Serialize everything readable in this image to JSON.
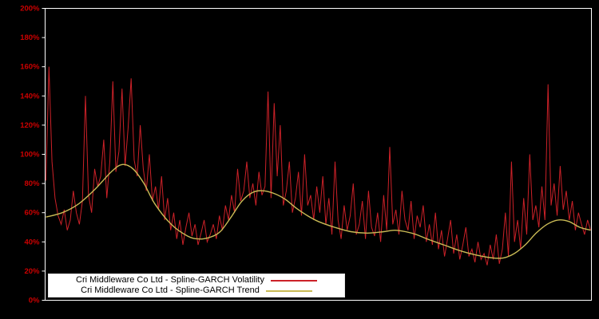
{
  "chart_data": {
    "type": "line",
    "title": "",
    "xlabel": "",
    "ylabel": "",
    "ylim": [
      0,
      200
    ],
    "ytick_step": 20,
    "ytick_suffix": "%",
    "grid": false,
    "legend_position": "bottom-left-inside",
    "background_color": "#000000",
    "axis_color": "#ffffff",
    "tick_label_color": "#cc0000",
    "series": [
      {
        "name": "Cri Middleware Co Ltd - Spline-GARCH Volatility",
        "color": "#cc2128",
        "style": "spiky-line",
        "values": [
          82,
          160,
          95,
          70,
          58,
          52,
          62,
          48,
          55,
          75,
          60,
          52,
          68,
          140,
          72,
          60,
          90,
          78,
          85,
          110,
          70,
          95,
          150,
          88,
          102,
          145,
          92,
          118,
          152,
          96,
          85,
          120,
          90,
          75,
          100,
          68,
          78,
          62,
          85,
          55,
          70,
          48,
          60,
          42,
          55,
          38,
          50,
          60,
          44,
          52,
          38,
          46,
          55,
          40,
          45,
          52,
          42,
          58,
          48,
          65,
          55,
          72,
          60,
          90,
          68,
          75,
          95,
          70,
          80,
          65,
          88,
          72,
          78,
          143,
          70,
          135,
          85,
          120,
          65,
          75,
          95,
          60,
          70,
          88,
          58,
          100,
          65,
          72,
          55,
          78,
          60,
          85,
          52,
          70,
          45,
          95,
          55,
          42,
          65,
          48,
          58,
          80,
          45,
          52,
          68,
          42,
          75,
          50,
          44,
          60,
          40,
          72,
          48,
          105,
          52,
          62,
          45,
          75,
          55,
          48,
          68,
          42,
          58,
          50,
          65,
          40,
          52,
          38,
          60,
          35,
          48,
          30,
          42,
          55,
          32,
          45,
          28,
          38,
          50,
          30,
          35,
          26,
          40,
          28,
          32,
          24,
          38,
          28,
          45,
          25,
          35,
          60,
          30,
          95,
          40,
          55,
          35,
          70,
          45,
          100,
          55,
          65,
          50,
          78,
          55,
          148,
          65,
          80,
          58,
          92,
          62,
          75,
          55,
          68,
          48,
          60,
          52,
          45,
          55,
          48
        ]
      },
      {
        "name": "Cri Middleware Co Ltd - Spline-GARCH Trend",
        "color": "#c9ba55",
        "style": "smooth-line",
        "anchors": [
          [
            0,
            57
          ],
          [
            3,
            60
          ],
          [
            6,
            66
          ],
          [
            9,
            76
          ],
          [
            12,
            88
          ],
          [
            14,
            93
          ],
          [
            16,
            90
          ],
          [
            18,
            80
          ],
          [
            20,
            66
          ],
          [
            23,
            52
          ],
          [
            26,
            44
          ],
          [
            28,
            42
          ],
          [
            30,
            43
          ],
          [
            32,
            47
          ],
          [
            34,
            57
          ],
          [
            36,
            68
          ],
          [
            38,
            74
          ],
          [
            40,
            75
          ],
          [
            42,
            73
          ],
          [
            44,
            69
          ],
          [
            46,
            63
          ],
          [
            48,
            58
          ],
          [
            50,
            54
          ],
          [
            53,
            50
          ],
          [
            56,
            47
          ],
          [
            59,
            46
          ],
          [
            62,
            47
          ],
          [
            64,
            48
          ],
          [
            66,
            47
          ],
          [
            68,
            45
          ],
          [
            70,
            42
          ],
          [
            73,
            38
          ],
          [
            76,
            34
          ],
          [
            79,
            31
          ],
          [
            82,
            29
          ],
          [
            84,
            29
          ],
          [
            86,
            32
          ],
          [
            88,
            38
          ],
          [
            90,
            46
          ],
          [
            92,
            52
          ],
          [
            94,
            55
          ],
          [
            96,
            54
          ],
          [
            98,
            50
          ],
          [
            100,
            48
          ]
        ]
      }
    ]
  }
}
